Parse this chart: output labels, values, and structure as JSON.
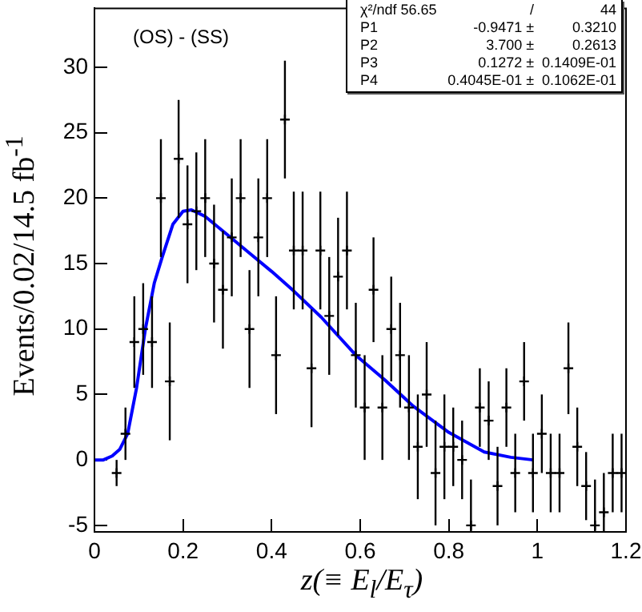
{
  "chart_data": {
    "type": "scatter",
    "xlabel": "z(≡ E$_{l}$/E$_{τ}$)",
    "ylabel": "Events/0.02/14.5 fb$^{-1}$",
    "annotations": [
      "(OS) - (SS)",
      "χ²/ndf 56.65  /  44",
      "P1  -0.9471 ±  0.3210",
      "P2  3.700 ±  0.2613",
      "P3  0.1272 ±  0.1409E-01",
      "P4  0.4045E-01 ±  0.1062E-01"
    ],
    "xlim": [
      0,
      1.2
    ],
    "xticks": [
      0,
      0.2,
      0.4,
      0.6,
      0.8,
      1,
      1.2
    ],
    "ylim": [
      -5.5,
      34.5
    ],
    "yticks": [
      -5,
      0,
      5,
      10,
      15,
      20,
      25,
      30
    ],
    "grid": false,
    "legend": false,
    "series": [
      {
        "color": "#000000",
        "marker": "cross",
        "x": [
          0.05,
          0.07,
          0.09,
          0.11,
          0.13,
          0.15,
          0.17,
          0.19,
          0.21,
          0.23,
          0.25,
          0.27,
          0.29,
          0.31,
          0.33,
          0.35,
          0.37,
          0.39,
          0.41,
          0.43,
          0.45,
          0.47,
          0.49,
          0.51,
          0.53,
          0.55,
          0.57,
          0.59,
          0.61,
          0.63,
          0.65,
          0.67,
          0.69,
          0.71,
          0.73,
          0.75,
          0.77,
          0.79,
          0.81,
          0.83,
          0.85,
          0.87,
          0.89,
          0.91,
          0.93,
          0.95,
          0.97,
          0.99,
          1.01,
          1.03,
          1.05,
          1.07,
          1.09,
          1.11,
          1.13,
          1.15,
          1.17,
          1.19
        ],
        "values": [
          -1,
          2,
          9,
          10,
          9,
          20,
          6,
          23,
          18,
          19,
          20,
          15,
          13,
          17,
          20,
          10,
          17,
          20,
          8,
          26,
          16,
          16,
          7,
          16,
          11,
          14,
          16,
          8,
          4,
          13,
          4,
          10,
          8,
          4,
          1,
          5,
          -1,
          1,
          1,
          0,
          -5,
          4,
          3,
          -2,
          4,
          -1,
          6,
          -1,
          2,
          -1,
          -1,
          7,
          1,
          -2,
          -5,
          -4,
          -1,
          -1
        ],
        "errors": [
          1,
          2,
          3.5,
          3.5,
          3.5,
          4.5,
          4.5,
          4.5,
          4.5,
          4.5,
          4.5,
          4.5,
          4.5,
          4.5,
          4.5,
          4.5,
          4.5,
          4.5,
          4.5,
          4.5,
          4.5,
          4.5,
          4.5,
          4.5,
          4.5,
          4.5,
          4.5,
          4,
          4,
          4,
          4,
          4,
          4,
          4,
          4,
          4,
          4,
          4,
          3,
          3,
          [
            -5.5,
            -1.5
          ],
          3,
          3,
          3,
          3,
          3,
          3,
          3,
          3,
          3,
          3,
          3.5,
          3,
          2.6,
          [
            -5.5,
            -1.5
          ],
          [
            -5.5,
            -1
          ],
          3,
          3
        ]
      },
      {
        "type": "line",
        "color": "#0000ff",
        "line_style": "solid",
        "x": [
          0,
          0.02,
          0.04,
          0.057,
          0.075,
          0.095,
          0.115,
          0.135,
          0.153,
          0.177,
          0.2,
          0.219,
          0.25,
          0.3,
          0.35,
          0.4,
          0.45,
          0.512,
          0.59,
          0.656,
          0.72,
          0.8,
          0.88,
          0.94,
          0.99
        ],
        "values": [
          0,
          0,
          0.3,
          0.8,
          2,
          5.5,
          10,
          13.5,
          15.5,
          18,
          19,
          19.1,
          18.6,
          17.2,
          15.8,
          14.4,
          12.9,
          10.9,
          8,
          6.1,
          4.1,
          2.1,
          0.6,
          0.2,
          0
        ]
      }
    ]
  }
}
